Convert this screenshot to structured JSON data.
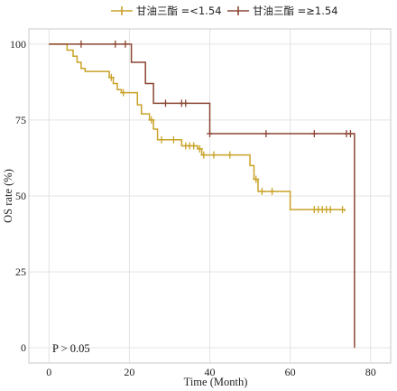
{
  "chart_data": {
    "type": "line",
    "xlabel": "Time (Month)",
    "ylabel": "OS rate (%)",
    "xlim": [
      -5,
      85
    ],
    "ylim": [
      -5,
      105
    ],
    "xticks": [
      0,
      20,
      40,
      60,
      80
    ],
    "yticks": [
      0,
      25,
      50,
      75,
      100
    ],
    "grid": true,
    "legend_position": "top",
    "annotation": "P > 0.05",
    "series": [
      {
        "name": "甘油三酯 =<1.54",
        "color": "#C9A227",
        "steps": [
          [
            0,
            100
          ],
          [
            4.5,
            100
          ],
          [
            4.5,
            98
          ],
          [
            6,
            98
          ],
          [
            6,
            96
          ],
          [
            7,
            96
          ],
          [
            7,
            94
          ],
          [
            8,
            94
          ],
          [
            8,
            92
          ],
          [
            9,
            92
          ],
          [
            9,
            91
          ],
          [
            15,
            91
          ],
          [
            15,
            89
          ],
          [
            16,
            89
          ],
          [
            16,
            87
          ],
          [
            17,
            87
          ],
          [
            17,
            85
          ],
          [
            18,
            85
          ],
          [
            18,
            84
          ],
          [
            22,
            84
          ],
          [
            22,
            80
          ],
          [
            23,
            80
          ],
          [
            23,
            77
          ],
          [
            25,
            77
          ],
          [
            25,
            75
          ],
          [
            26,
            75
          ],
          [
            26,
            72
          ],
          [
            27,
            72
          ],
          [
            27,
            68.5
          ],
          [
            33,
            68.5
          ],
          [
            33,
            66.5
          ],
          [
            37,
            66.5
          ],
          [
            37,
            65.5
          ],
          [
            38,
            65.5
          ],
          [
            38,
            63.5
          ],
          [
            50,
            63.5
          ],
          [
            50,
            60
          ],
          [
            51,
            60
          ],
          [
            51,
            55.5
          ],
          [
            52,
            55.5
          ],
          [
            52,
            51.5
          ],
          [
            56,
            51.5
          ],
          [
            56,
            51.5
          ],
          [
            60,
            51.5
          ],
          [
            60,
            45.5
          ],
          [
            73.5,
            45.5
          ],
          [
            73.5,
            45
          ]
        ],
        "censor_x": [
          15.5,
          18.5,
          25.5,
          28,
          31,
          34,
          35,
          36,
          37.5,
          38.5,
          41,
          45,
          51.5,
          53,
          55.5,
          66,
          67,
          68,
          69,
          70,
          73
        ]
      },
      {
        "name": "甘油三酯 =≥1.54",
        "color": "#8B4533",
        "steps": [
          [
            0,
            100
          ],
          [
            20.5,
            100
          ],
          [
            20.5,
            94
          ],
          [
            24,
            94
          ],
          [
            24,
            87
          ],
          [
            26,
            87
          ],
          [
            26,
            80.5
          ],
          [
            40,
            80.5
          ],
          [
            40,
            70.5
          ],
          [
            76,
            70.5
          ],
          [
            76,
            0
          ]
        ],
        "censor_x": [
          8,
          16.5,
          19,
          29,
          33,
          34,
          40,
          54,
          66,
          74,
          75
        ]
      }
    ]
  }
}
